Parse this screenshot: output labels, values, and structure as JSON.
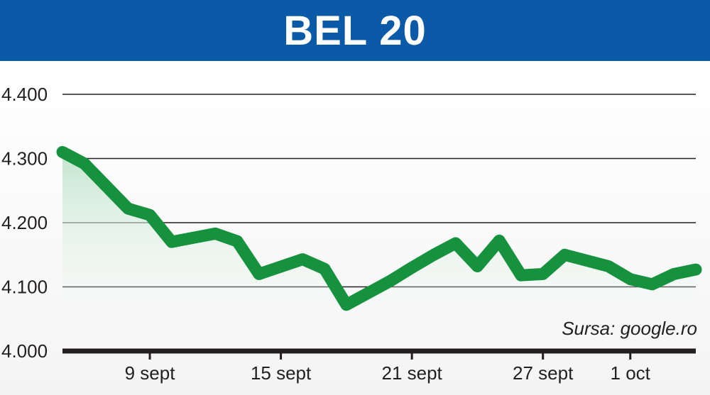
{
  "header": {
    "title": "BEL 20"
  },
  "source": "Sursa: google.ro",
  "colors": {
    "header_bg": "#0b5aa8",
    "line": "#16913e",
    "area_top": "#bfe3cb",
    "grid": "#231f20"
  },
  "chart_data": {
    "type": "area",
    "title": "BEL 20",
    "xlabel": "",
    "ylabel": "",
    "ylim": [
      4000,
      4400
    ],
    "yticks": [
      4000,
      4100,
      4200,
      4300,
      4400
    ],
    "ytick_labels": [
      "4.000",
      "4.100",
      "4.200",
      "4.300",
      "4.400"
    ],
    "xticks": [
      "2013-09-09",
      "2013-09-15",
      "2013-09-21",
      "2013-09-27",
      "2013-10-01"
    ],
    "xtick_labels": [
      "9 sept",
      "15 sept",
      "21 sept",
      "27 sept",
      "1 oct"
    ],
    "xlim": [
      "2013-09-05",
      "2013-10-04"
    ],
    "grid": true,
    "series": [
      {
        "x": [
          "2013-09-05",
          "2013-09-06",
          "2013-09-08",
          "2013-09-09",
          "2013-09-10",
          "2013-09-12",
          "2013-09-13",
          "2013-09-14",
          "2013-09-16",
          "2013-09-17",
          "2013-09-18",
          "2013-09-20",
          "2013-09-21",
          "2013-09-22",
          "2013-09-23",
          "2013-09-24",
          "2013-09-25",
          "2013-09-26",
          "2013-09-27",
          "2013-09-28",
          "2013-09-30",
          "2013-10-01",
          "2013-10-02",
          "2013-10-03",
          "2013-10-04"
        ],
        "y": [
          4310,
          4292,
          4222,
          4212,
          4170,
          4183,
          4171,
          4120,
          4143,
          4128,
          4072,
          4109,
          4130,
          4150,
          4168,
          4132,
          4172,
          4118,
          4120,
          4150,
          4132,
          4112,
          4104,
          4120,
          4127
        ]
      }
    ]
  }
}
